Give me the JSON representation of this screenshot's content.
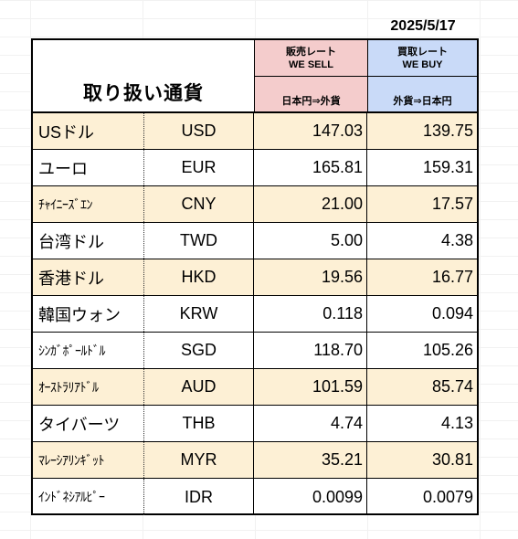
{
  "date": "2025/5/17",
  "table": {
    "title": "取り扱い通貨",
    "sell_header": {
      "jp": "販売レート",
      "en": "WE SELL",
      "direction": "日本円⇒外貨"
    },
    "buy_header": {
      "jp": "買取レート",
      "en": "WE BUY",
      "direction": "外貨⇒日本円"
    },
    "rows": [
      {
        "name": "USドル",
        "code": "USD",
        "sell": "147.03",
        "buy": "139.75"
      },
      {
        "name": "ユーロ",
        "code": "EUR",
        "sell": "165.81",
        "buy": "159.31"
      },
      {
        "name": "ﾁｬｲﾆｰｽﾞｴﾝ",
        "code": "CNY",
        "sell": "21.00",
        "buy": "17.57"
      },
      {
        "name": "台湾ドル",
        "code": "TWD",
        "sell": "5.00",
        "buy": "4.38"
      },
      {
        "name": "香港ドル",
        "code": "HKD",
        "sell": "19.56",
        "buy": "16.77"
      },
      {
        "name": "韓国ウォン",
        "code": "KRW",
        "sell": "0.118",
        "buy": "0.094"
      },
      {
        "name": "ｼﾝｶﾞﾎﾟｰﾙﾄﾞﾙ",
        "code": "SGD",
        "sell": "118.70",
        "buy": "105.26"
      },
      {
        "name": "ｵｰｽﾄﾗﾘｱﾄﾞﾙ",
        "code": "AUD",
        "sell": "101.59",
        "buy": "85.74"
      },
      {
        "name": "タイバーツ",
        "code": "THB",
        "sell": "4.74",
        "buy": "4.13"
      },
      {
        "name": "ﾏﾚｰｼｱﾘﾝｷﾞｯﾄ",
        "code": "MYR",
        "sell": "35.21",
        "buy": "30.81"
      },
      {
        "name": "ｲﾝﾄﾞﾈｼｱﾙﾋﾟｰ",
        "code": "IDR",
        "sell": "0.0099",
        "buy": "0.0079"
      }
    ]
  },
  "colors": {
    "sell_header_bg": "#f4cccc",
    "buy_header_bg": "#c9daf8",
    "highlight_row_bg": "#fdf0d5"
  }
}
